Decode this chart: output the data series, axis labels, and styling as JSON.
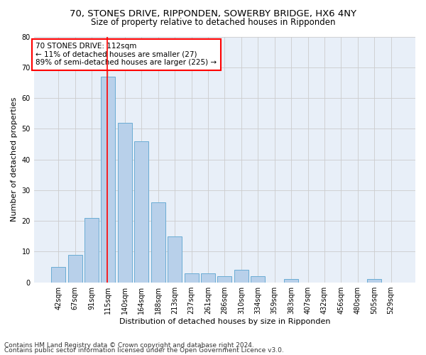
{
  "title1": "70, STONES DRIVE, RIPPONDEN, SOWERBY BRIDGE, HX6 4NY",
  "title2": "Size of property relative to detached houses in Ripponden",
  "xlabel": "Distribution of detached houses by size in Ripponden",
  "ylabel": "Number of detached properties",
  "annotation_title": "70 STONES DRIVE: 112sqm",
  "annotation_line1": "← 11% of detached houses are smaller (27)",
  "annotation_line2": "89% of semi-detached houses are larger (225) →",
  "footnote1": "Contains HM Land Registry data © Crown copyright and database right 2024.",
  "footnote2": "Contains public sector information licensed under the Open Government Licence v3.0.",
  "bar_labels": [
    "42sqm",
    "67sqm",
    "91sqm",
    "115sqm",
    "140sqm",
    "164sqm",
    "188sqm",
    "213sqm",
    "237sqm",
    "261sqm",
    "286sqm",
    "310sqm",
    "334sqm",
    "359sqm",
    "383sqm",
    "407sqm",
    "432sqm",
    "456sqm",
    "480sqm",
    "505sqm",
    "529sqm"
  ],
  "bar_values": [
    5,
    9,
    21,
    67,
    52,
    46,
    26,
    15,
    3,
    3,
    2,
    4,
    2,
    0,
    1,
    0,
    0,
    0,
    0,
    1,
    0
  ],
  "bar_color": "#b8d0ea",
  "bar_edge_color": "#6aacd4",
  "ref_line_color": "red",
  "annotation_box_edge_color": "red",
  "ylim": [
    0,
    80
  ],
  "yticks": [
    0,
    10,
    20,
    30,
    40,
    50,
    60,
    70,
    80
  ],
  "grid_color": "#cccccc",
  "bg_color": "#e8eff8",
  "title1_fontsize": 9.5,
  "title2_fontsize": 8.5,
  "xlabel_fontsize": 8,
  "ylabel_fontsize": 8,
  "tick_fontsize": 7,
  "annotation_fontsize": 7.5,
  "footnote_fontsize": 6.5
}
